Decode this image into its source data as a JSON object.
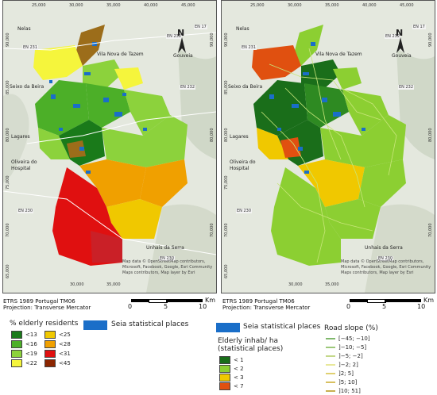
{
  "left_map": {
    "x_ticks": [
      "25,000",
      "30,000",
      "35,000",
      "40,000",
      "45,000"
    ],
    "y_ticks": [
      "90,000",
      "85,000",
      "80,000",
      "75,000",
      "70,000",
      "65,000"
    ],
    "places": [
      "Nelas",
      "Vila Nova de Tazem",
      "Gouveia",
      "Seixo da Beira",
      "Lagares",
      "Oliveira do Hospital",
      "Unhais da Serra"
    ],
    "roads": [
      "EN 232",
      "EN 17",
      "EN 231",
      "EN 232",
      "EN 230",
      "EN 230"
    ],
    "attribution": [
      "Map data © OpenStreetMap contributors,",
      "Microsoft, Facebook, Google, Esri Community",
      "Maps contributors, Map layer by Esri"
    ],
    "north": "N",
    "projection": [
      "ETRS 1989 Portugal TM06",
      "Projection: Transverse Mercator"
    ],
    "scale": {
      "labels": [
        "0",
        "5",
        "10"
      ],
      "unit": "Km"
    }
  },
  "right_map": {
    "x_ticks": [
      "25,000",
      "30,000",
      "35,000",
      "40,000",
      "45,000"
    ],
    "y_ticks": [
      "90,000",
      "85,000",
      "80,000",
      "75,000",
      "70,000",
      "65,000"
    ],
    "places": [
      "Nelas",
      "Vila Nova de Tazem",
      "Gouveia",
      "Seixo da Beira",
      "Lagares",
      "Oliveira do Hospital",
      "Unhais da Serra"
    ],
    "roads": [
      "EN 232",
      "EN 17",
      "EN 231",
      "EN 232",
      "EN 230",
      "EN 230"
    ],
    "attribution": [
      "Map data © OpenStreetMap contributors,",
      "Microsoft, Facebook, Google, Esri Community",
      "Maps contributors, Map layer by Esri"
    ],
    "north": "N",
    "projection": [
      "ETRS 1989 Portugal TM06",
      "Projection: Transverse Mercator"
    ],
    "scale": {
      "labels": [
        "0",
        "5",
        "10"
      ],
      "unit": "Km"
    }
  },
  "legend_left": {
    "title": "% elderly residents",
    "items": [
      {
        "label": "<13",
        "color": "#1a7a1a"
      },
      {
        "label": "<25",
        "color": "#f0c800"
      },
      {
        "label": "<16",
        "color": "#4caf28"
      },
      {
        "label": "<28",
        "color": "#f0a000"
      },
      {
        "label": "<19",
        "color": "#8cd23c"
      },
      {
        "label": "<31",
        "color": "#e01010"
      },
      {
        "label": "<22",
        "color": "#f5f53c"
      },
      {
        "label": "<45",
        "color": "#8b2500"
      }
    ],
    "places_label": "Seia statistical places",
    "places_color": "#1a6ec8"
  },
  "legend_right": {
    "places_label": "Seia statistical places",
    "places_color": "#1a6ec8",
    "density_title": [
      "Elderly inhab/ ha",
      "(statistical places)"
    ],
    "density_items": [
      {
        "label": "< 1",
        "color": "#1a6e1a"
      },
      {
        "label": "< 2",
        "color": "#8ccf32"
      },
      {
        "label": "< 3",
        "color": "#f0c800"
      },
      {
        "label": "< 7",
        "color": "#e05010"
      }
    ],
    "slope_title": "Road slope (%)",
    "slope_items": [
      {
        "label": "[−45; −10]",
        "color": "#7fb86c"
      },
      {
        "label": "]−10; −5]",
        "color": "#9cc87a"
      },
      {
        "label": "]−5; −2]",
        "color": "#c4d88a"
      },
      {
        "label": "]−2; 2]",
        "color": "#e8e89a"
      },
      {
        "label": "]2; 5]",
        "color": "#e0d070"
      },
      {
        "label": "]5; 10]",
        "color": "#d8c060"
      },
      {
        "label": "]10; 51]",
        "color": "#c8b050"
      }
    ]
  }
}
